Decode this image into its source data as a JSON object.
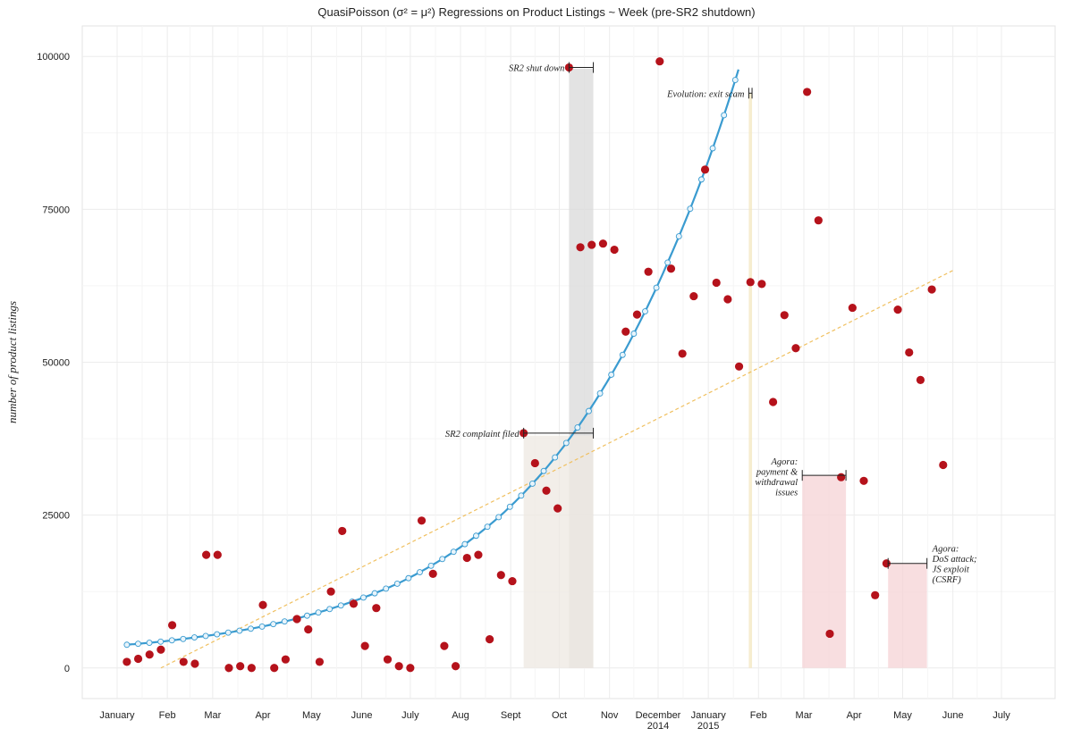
{
  "chart_data": {
    "type": "scatter",
    "title": "QuasiPoisson (σ² = μ²) Regressions on Product Listings ~ Week (pre-SR2 shutdown)",
    "xlabel": "",
    "ylabel": "number of product listings",
    "ylim": [
      -5000,
      105000
    ],
    "grid": true,
    "y_ticks": [
      0,
      25000,
      50000,
      75000,
      100000
    ],
    "y_tick_labels": [
      "0",
      "25000",
      "50000",
      "75000",
      "100000"
    ],
    "x_ticks": [
      {
        "date": "2014-01-01",
        "label": [
          "January"
        ]
      },
      {
        "date": "2014-02-01",
        "label": [
          "Feb"
        ]
      },
      {
        "date": "2014-03-01",
        "label": [
          "Mar"
        ]
      },
      {
        "date": "2014-04-01",
        "label": [
          "Apr"
        ]
      },
      {
        "date": "2014-05-01",
        "label": [
          "May"
        ]
      },
      {
        "date": "2014-06-01",
        "label": [
          "June"
        ]
      },
      {
        "date": "2014-07-01",
        "label": [
          "July"
        ]
      },
      {
        "date": "2014-08-01",
        "label": [
          "Aug"
        ]
      },
      {
        "date": "2014-09-01",
        "label": [
          "Sept"
        ]
      },
      {
        "date": "2014-10-01",
        "label": [
          "Oct"
        ]
      },
      {
        "date": "2014-11-01",
        "label": [
          "Nov"
        ]
      },
      {
        "date": "2014-12-01",
        "label": [
          "December",
          "2014"
        ]
      },
      {
        "date": "2015-01-01",
        "label": [
          "January",
          "2015"
        ]
      },
      {
        "date": "2015-02-01",
        "label": [
          "Feb"
        ]
      },
      {
        "date": "2015-03-01",
        "label": [
          "Mar"
        ]
      },
      {
        "date": "2015-04-01",
        "label": [
          "Apr"
        ]
      },
      {
        "date": "2015-05-01",
        "label": [
          "May"
        ]
      },
      {
        "date": "2015-06-01",
        "label": [
          "June"
        ]
      },
      {
        "date": "2015-07-01",
        "label": [
          "July"
        ]
      }
    ],
    "series": [
      {
        "type": "points",
        "color": "#b5121b",
        "points": [
          [
            "2014-01-07",
            1000
          ],
          [
            "2014-01-14",
            1500
          ],
          [
            "2014-01-21",
            2200
          ],
          [
            "2014-01-28",
            3000
          ],
          [
            "2014-02-04",
            7000
          ],
          [
            "2014-02-11",
            1000
          ],
          [
            "2014-02-18",
            700
          ],
          [
            "2014-02-25",
            18500
          ],
          [
            "2014-03-04",
            18500
          ],
          [
            "2014-03-11",
            0
          ],
          [
            "2014-03-18",
            300
          ],
          [
            "2014-03-25",
            0
          ],
          [
            "2014-04-01",
            10300
          ],
          [
            "2014-04-08",
            0
          ],
          [
            "2014-04-15",
            1400
          ],
          [
            "2014-04-22",
            8000
          ],
          [
            "2014-04-29",
            6300
          ],
          [
            "2014-05-06",
            1000
          ],
          [
            "2014-05-13",
            12500
          ],
          [
            "2014-05-20",
            22400
          ],
          [
            "2014-05-27",
            10500
          ],
          [
            "2014-06-03",
            3600
          ],
          [
            "2014-06-10",
            9800
          ],
          [
            "2014-06-17",
            1400
          ],
          [
            "2014-06-24",
            300
          ],
          [
            "2014-07-01",
            0
          ],
          [
            "2014-07-08",
            24100
          ],
          [
            "2014-07-15",
            15400
          ],
          [
            "2014-07-22",
            3600
          ],
          [
            "2014-07-29",
            300
          ],
          [
            "2014-08-05",
            18000
          ],
          [
            "2014-08-12",
            18500
          ],
          [
            "2014-08-19",
            4700
          ],
          [
            "2014-08-26",
            15200
          ],
          [
            "2014-09-02",
            14200
          ],
          [
            "2014-09-09",
            38400
          ],
          [
            "2014-09-16",
            33500
          ],
          [
            "2014-09-23",
            29000
          ],
          [
            "2014-09-30",
            26100
          ],
          [
            "2014-10-07",
            98200
          ],
          [
            "2014-10-14",
            68800
          ],
          [
            "2014-10-21",
            69200
          ],
          [
            "2014-10-28",
            69400
          ],
          [
            "2014-11-04",
            68400
          ],
          [
            "2014-11-11",
            55000
          ],
          [
            "2014-11-18",
            57800
          ],
          [
            "2014-11-25",
            64800
          ],
          [
            "2014-12-02",
            99200
          ],
          [
            "2014-12-09",
            65300
          ],
          [
            "2014-12-16",
            51400
          ],
          [
            "2014-12-23",
            60800
          ],
          [
            "2014-12-30",
            81500
          ],
          [
            "2015-01-06",
            63000
          ],
          [
            "2015-01-13",
            60300
          ],
          [
            "2015-01-20",
            49300
          ],
          [
            "2015-01-27",
            63100
          ],
          [
            "2015-02-03",
            62800
          ],
          [
            "2015-02-10",
            43500
          ],
          [
            "2015-02-17",
            57700
          ],
          [
            "2015-02-24",
            52300
          ],
          [
            "2015-03-03",
            94200
          ],
          [
            "2015-03-10",
            73200
          ],
          [
            "2015-03-17",
            5600
          ],
          [
            "2015-03-24",
            31200
          ],
          [
            "2015-03-31",
            58900
          ],
          [
            "2015-04-07",
            30600
          ],
          [
            "2015-04-14",
            11900
          ],
          [
            "2015-04-21",
            17100
          ],
          [
            "2015-04-28",
            58600
          ],
          [
            "2015-05-05",
            51600
          ],
          [
            "2015-05-12",
            47100
          ],
          [
            "2015-05-19",
            61900
          ],
          [
            "2015-05-26",
            33200
          ]
        ]
      },
      {
        "type": "fit-curve",
        "color": "#3a9bd0",
        "points": [
          [
            "2014-01-07",
            3800
          ],
          [
            "2014-01-28",
            4300
          ],
          [
            "2014-02-18",
            5000
          ],
          [
            "2014-03-11",
            5800
          ],
          [
            "2014-04-01",
            6800
          ],
          [
            "2014-04-22",
            8100
          ],
          [
            "2014-05-13",
            9700
          ],
          [
            "2014-06-03",
            11600
          ],
          [
            "2014-06-24",
            13900
          ],
          [
            "2014-07-15",
            16900
          ],
          [
            "2014-08-05",
            20500
          ],
          [
            "2014-08-26",
            25000
          ],
          [
            "2014-09-16",
            30600
          ],
          [
            "2014-10-07",
            37400
          ],
          [
            "2014-10-28",
            45700
          ],
          [
            "2014-11-18",
            55700
          ],
          [
            "2014-12-09",
            67600
          ],
          [
            "2014-12-30",
            81500
          ],
          [
            "2015-01-20",
            98200
          ]
        ]
      },
      {
        "type": "linear-fit",
        "color": "#f0c060",
        "points": [
          [
            "2014-01-28",
            0
          ],
          [
            "2015-06-01",
            65000
          ]
        ]
      }
    ],
    "annotations": [
      {
        "text": [
          "SR2 shut down"
        ],
        "date": "2014-10-07",
        "end": "2014-10-22",
        "y": 98200,
        "shade_color": "#d9d9d9",
        "shade_to": 98000
      },
      {
        "text": [
          "SR2 complaint filed"
        ],
        "date": "2014-09-09",
        "end": "2014-10-22",
        "y": 38400,
        "shade_color": "#eee8e2",
        "shade_to": 38000
      },
      {
        "text": [
          "Evolution: exit scam"
        ],
        "date": "2015-01-26",
        "end": "2015-01-28",
        "y": 94000,
        "shade_color": "#f3e7bf",
        "shade_to": 94000
      },
      {
        "text": [
          "Agora:",
          "payment &",
          "withdrawal",
          "issues"
        ],
        "date": "2015-02-28",
        "end": "2015-03-27",
        "y": 31500,
        "shade_color": "#f5d3d5",
        "shade_to": 31500
      },
      {
        "text": [
          "Agora:",
          "DoS attack;",
          "JS exploit",
          "(CSRF)"
        ],
        "date": "2015-04-22",
        "end": "2015-05-16",
        "y": 17100,
        "shade_color": "#f5d3d5",
        "shade_to": 17100
      }
    ]
  }
}
